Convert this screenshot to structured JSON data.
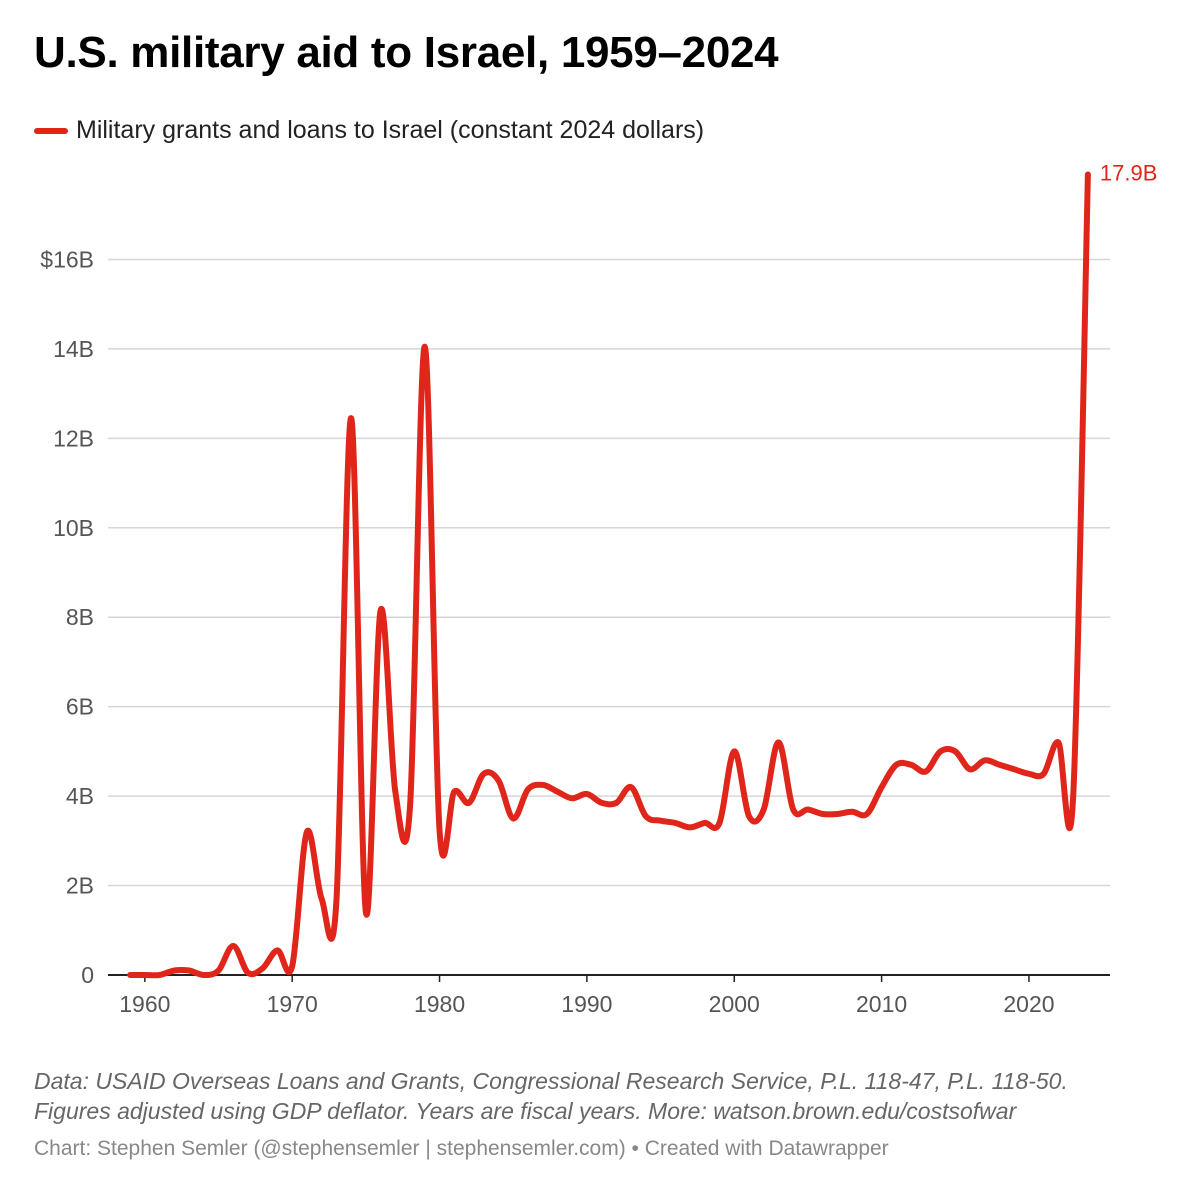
{
  "chart_data": {
    "type": "line",
    "title": "U.S. military aid to Israel, 1959–2024",
    "series": [
      {
        "name": "Military grants and loans to Israel (constant 2024 dollars)",
        "color": "#e0261b",
        "x": [
          1959,
          1960,
          1961,
          1962,
          1963,
          1964,
          1965,
          1966,
          1967,
          1968,
          1969,
          1970,
          1971,
          1972,
          1973,
          1974,
          1975,
          1976,
          1977,
          1978,
          1979,
          1980,
          1981,
          1982,
          1983,
          1984,
          1985,
          1986,
          1987,
          1988,
          1989,
          1990,
          1991,
          1992,
          1993,
          1994,
          1995,
          1996,
          1997,
          1998,
          1999,
          2000,
          2001,
          2002,
          2003,
          2004,
          2005,
          2006,
          2007,
          2008,
          2009,
          2010,
          2011,
          2012,
          2013,
          2014,
          2015,
          2016,
          2017,
          2018,
          2019,
          2020,
          2021,
          2022,
          2023,
          2024
        ],
        "values": [
          0,
          0,
          0,
          0.1,
          0.1,
          0,
          0.1,
          0.65,
          0.05,
          0.15,
          0.55,
          0.2,
          3.2,
          1.7,
          1.65,
          12.45,
          1.4,
          8.15,
          4.1,
          3.8,
          14.05,
          3.25,
          4.1,
          3.85,
          4.5,
          4.35,
          3.5,
          4.15,
          4.25,
          4.1,
          3.95,
          4.05,
          3.85,
          3.85,
          4.2,
          3.55,
          3.45,
          3.4,
          3.3,
          3.4,
          3.4,
          5.0,
          3.55,
          3.7,
          5.2,
          3.7,
          3.7,
          3.6,
          3.6,
          3.65,
          3.6,
          4.2,
          4.7,
          4.7,
          4.55,
          5.0,
          5.0,
          4.6,
          4.8,
          4.7,
          4.6,
          4.5,
          4.5,
          5.2,
          4.0,
          17.9
        ]
      }
    ],
    "end_label": "17.9B",
    "ylim": [
      0,
      18
    ],
    "xlim": [
      1958.5,
      1925.0
    ],
    "y_ticks": [
      {
        "value": 0,
        "label": "0"
      },
      {
        "value": 2,
        "label": "2B"
      },
      {
        "value": 4,
        "label": "4B"
      },
      {
        "value": 6,
        "label": "6B"
      },
      {
        "value": 8,
        "label": "8B"
      },
      {
        "value": 10,
        "label": "10B"
      },
      {
        "value": 12,
        "label": "12B"
      },
      {
        "value": 14,
        "label": "14B"
      },
      {
        "value": 16,
        "label": "$16B"
      }
    ],
    "x_ticks": [
      {
        "value": 1960,
        "label": "1960"
      },
      {
        "value": 1970,
        "label": "1970"
      },
      {
        "value": 1980,
        "label": "1980"
      },
      {
        "value": 1990,
        "label": "1990"
      },
      {
        "value": 2000,
        "label": "2000"
      },
      {
        "value": 2010,
        "label": "2010"
      },
      {
        "value": 2020,
        "label": "2020"
      }
    ],
    "grid": true,
    "legend_position": "top-left",
    "xlabel": "",
    "ylabel": ""
  },
  "notes": {
    "line1": "Data: USAID Overseas Loans and Grants, Congressional Research Service, P.L. 118-47, P.L. 118-50.",
    "line2": "Figures adjusted using GDP deflator. Years are fiscal years. More: watson.brown.edu/costsofwar",
    "credit": "Chart: Stephen Semler (@stephensemler | stephensemler.com) • Created with Datawrapper"
  }
}
